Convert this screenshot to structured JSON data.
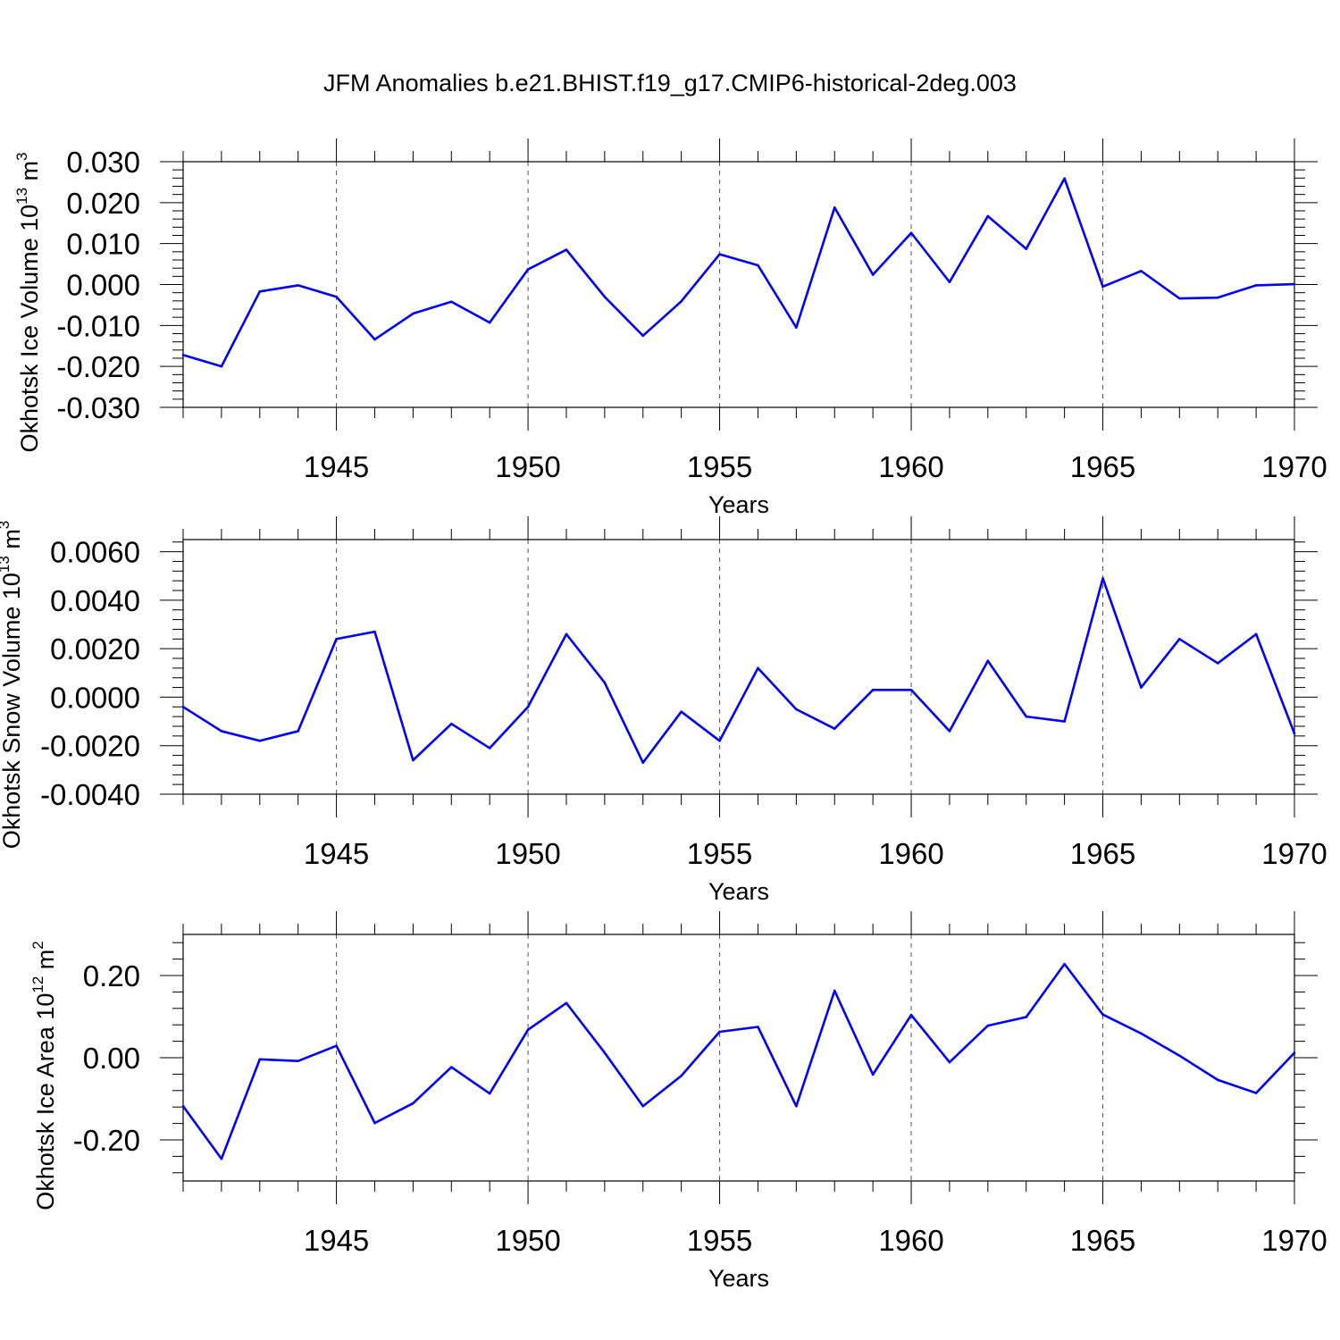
{
  "title": "JFM Anomalies b.e21.BHIST.f19_g17.CMIP6-historical-2deg.003",
  "line_color": "#0000FF",
  "chart_data": [
    {
      "type": "line",
      "ylabel": "Okhotsk Ice Volume 10",
      "ylabel_exp": "13",
      "ylabel_unit": " m",
      "ylabel_unit_exp": "3",
      "xlabel": "Years",
      "xlim": [
        1941,
        1970
      ],
      "ylim": [
        -0.03,
        0.03
      ],
      "yticks": [
        -0.03,
        -0.02,
        -0.01,
        0.0,
        0.01,
        0.02,
        0.03
      ],
      "ytick_labels": [
        "-0.030",
        "-0.020",
        "-0.010",
        "0.000",
        "0.010",
        "0.020",
        "0.030"
      ],
      "xticks": [
        1945,
        1950,
        1955,
        1960,
        1965,
        1970
      ],
      "xtick_labels": [
        "1945",
        "1950",
        "1955",
        "1960",
        "1965",
        "1970"
      ],
      "grid": "vertical dashed at major x ticks",
      "x": [
        1941,
        1942,
        1943,
        1944,
        1945,
        1946,
        1947,
        1948,
        1949,
        1950,
        1951,
        1952,
        1953,
        1954,
        1955,
        1956,
        1957,
        1958,
        1959,
        1960,
        1961,
        1962,
        1963,
        1964,
        1965,
        1966,
        1967,
        1968,
        1969,
        1970
      ],
      "values": [
        -0.0172,
        -0.02,
        -0.0017,
        -0.0002,
        -0.003,
        -0.0134,
        -0.0071,
        -0.0042,
        -0.0093,
        0.0037,
        0.0085,
        -0.003,
        -0.0125,
        -0.0041,
        0.0074,
        0.0047,
        -0.0105,
        0.0188,
        0.0024,
        0.0126,
        0.0006,
        0.0167,
        0.0087,
        0.0259,
        -0.0005,
        0.0033,
        -0.0034,
        -0.0032,
        -0.0002,
        0.0001
      ]
    },
    {
      "type": "line",
      "ylabel": "Okhotsk Snow Volume 10",
      "ylabel_exp": "13",
      "ylabel_unit": " m",
      "ylabel_unit_exp": "3",
      "xlabel": "Years",
      "xlim": [
        1941,
        1970
      ],
      "ylim": [
        -0.004,
        0.0065
      ],
      "yticks": [
        -0.004,
        -0.002,
        0.0,
        0.002,
        0.004,
        0.006
      ],
      "ytick_labels": [
        "-0.0040",
        "-0.0020",
        "0.0000",
        "0.0020",
        "0.0040",
        "0.0060"
      ],
      "xticks": [
        1945,
        1950,
        1955,
        1960,
        1965,
        1970
      ],
      "xtick_labels": [
        "1945",
        "1950",
        "1955",
        "1960",
        "1965",
        "1970"
      ],
      "grid": "vertical dashed at major x ticks",
      "x": [
        1941,
        1942,
        1943,
        1944,
        1945,
        1946,
        1947,
        1948,
        1949,
        1950,
        1951,
        1952,
        1953,
        1954,
        1955,
        1956,
        1957,
        1958,
        1959,
        1960,
        1961,
        1962,
        1963,
        1964,
        1965,
        1966,
        1967,
        1968,
        1969,
        1970
      ],
      "values": [
        -0.0004,
        -0.0014,
        -0.0018,
        -0.0014,
        0.0024,
        0.0027,
        -0.0026,
        -0.0011,
        -0.0021,
        -0.0004,
        0.0026,
        0.0006,
        -0.0027,
        -0.0006,
        -0.0018,
        0.0012,
        -0.0005,
        -0.0013,
        0.0003,
        0.0003,
        -0.0014,
        0.0015,
        -0.0008,
        -0.001,
        0.0049,
        0.0004,
        0.0024,
        0.0014,
        0.0026,
        -0.0015
      ]
    },
    {
      "type": "line",
      "ylabel": "Okhotsk Ice Area 10",
      "ylabel_exp": "12",
      "ylabel_unit": " m",
      "ylabel_unit_exp": "2",
      "xlabel": "Years",
      "xlim": [
        1941,
        1970
      ],
      "ylim": [
        -0.3,
        0.3
      ],
      "yticks": [
        -0.2,
        0.0,
        0.2
      ],
      "ytick_labels": [
        "-0.20",
        "0.00",
        "0.20"
      ],
      "xticks": [
        1945,
        1950,
        1955,
        1960,
        1965,
        1970
      ],
      "xtick_labels": [
        "1945",
        "1950",
        "1955",
        "1960",
        "1965",
        "1970"
      ],
      "grid": "vertical dashed at major x ticks",
      "x": [
        1941,
        1942,
        1943,
        1944,
        1945,
        1946,
        1947,
        1948,
        1949,
        1950,
        1951,
        1952,
        1953,
        1954,
        1955,
        1956,
        1957,
        1958,
        1959,
        1960,
        1961,
        1962,
        1963,
        1964,
        1965,
        1966,
        1967,
        1968,
        1969,
        1970
      ],
      "values": [
        -0.118,
        -0.246,
        -0.004,
        -0.008,
        0.029,
        -0.159,
        -0.111,
        -0.023,
        -0.087,
        0.068,
        0.133,
        0.012,
        -0.118,
        -0.044,
        0.063,
        0.075,
        -0.118,
        0.163,
        -0.041,
        0.104,
        -0.011,
        0.078,
        0.099,
        0.228,
        0.105,
        0.059,
        0.005,
        -0.054,
        -0.086,
        0.012
      ]
    }
  ]
}
